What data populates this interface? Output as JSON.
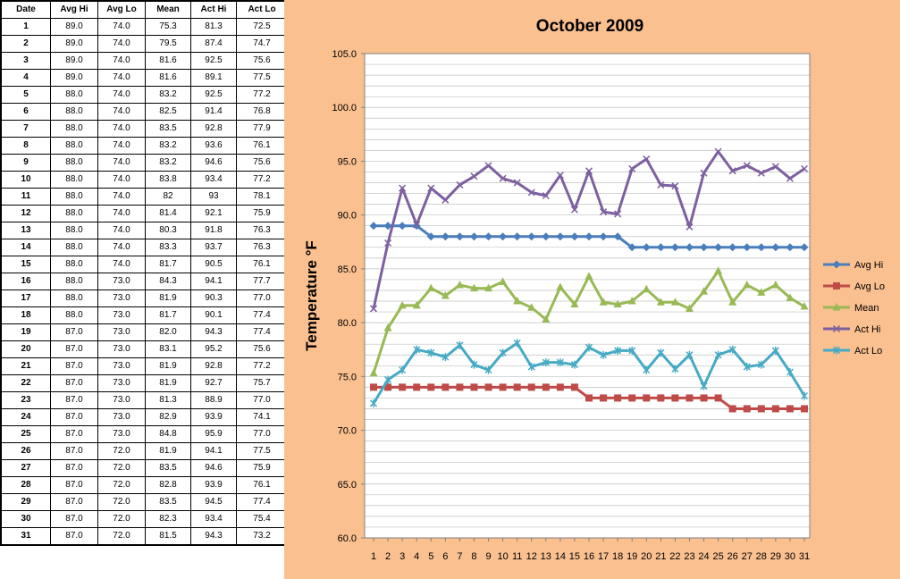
{
  "table": {
    "headers": [
      "Date",
      "Avg Hi",
      "Avg Lo",
      "Mean",
      "Act Hi",
      "Act Lo"
    ],
    "rows": [
      [
        "1",
        "89.0",
        "74.0",
        "75.3",
        "81.3",
        "72.5"
      ],
      [
        "2",
        "89.0",
        "74.0",
        "79.5",
        "87.4",
        "74.7"
      ],
      [
        "3",
        "89.0",
        "74.0",
        "81.6",
        "92.5",
        "75.6"
      ],
      [
        "4",
        "89.0",
        "74.0",
        "81.6",
        "89.1",
        "77.5"
      ],
      [
        "5",
        "88.0",
        "74.0",
        "83.2",
        "92.5",
        "77.2"
      ],
      [
        "6",
        "88.0",
        "74.0",
        "82.5",
        "91.4",
        "76.8"
      ],
      [
        "7",
        "88.0",
        "74.0",
        "83.5",
        "92.8",
        "77.9"
      ],
      [
        "8",
        "88.0",
        "74.0",
        "83.2",
        "93.6",
        "76.1"
      ],
      [
        "9",
        "88.0",
        "74.0",
        "83.2",
        "94.6",
        "75.6"
      ],
      [
        "10",
        "88.0",
        "74.0",
        "83.8",
        "93.4",
        "77.2"
      ],
      [
        "11",
        "88.0",
        "74.0",
        "82",
        "93",
        "78.1"
      ],
      [
        "12",
        "88.0",
        "74.0",
        "81.4",
        "92.1",
        "75.9"
      ],
      [
        "13",
        "88.0",
        "74.0",
        "80.3",
        "91.8",
        "76.3"
      ],
      [
        "14",
        "88.0",
        "74.0",
        "83.3",
        "93.7",
        "76.3"
      ],
      [
        "15",
        "88.0",
        "74.0",
        "81.7",
        "90.5",
        "76.1"
      ],
      [
        "16",
        "88.0",
        "73.0",
        "84.3",
        "94.1",
        "77.7"
      ],
      [
        "17",
        "88.0",
        "73.0",
        "81.9",
        "90.3",
        "77.0"
      ],
      [
        "18",
        "88.0",
        "73.0",
        "81.7",
        "90.1",
        "77.4"
      ],
      [
        "19",
        "87.0",
        "73.0",
        "82.0",
        "94.3",
        "77.4"
      ],
      [
        "20",
        "87.0",
        "73.0",
        "83.1",
        "95.2",
        "75.6"
      ],
      [
        "21",
        "87.0",
        "73.0",
        "81.9",
        "92.8",
        "77.2"
      ],
      [
        "22",
        "87.0",
        "73.0",
        "81.9",
        "92.7",
        "75.7"
      ],
      [
        "23",
        "87.0",
        "73.0",
        "81.3",
        "88.9",
        "77.0"
      ],
      [
        "24",
        "87.0",
        "73.0",
        "82.9",
        "93.9",
        "74.1"
      ],
      [
        "25",
        "87.0",
        "73.0",
        "84.8",
        "95.9",
        "77.0"
      ],
      [
        "26",
        "87.0",
        "72.0",
        "81.9",
        "94.1",
        "77.5"
      ],
      [
        "27",
        "87.0",
        "72.0",
        "83.5",
        "94.6",
        "75.9"
      ],
      [
        "28",
        "87.0",
        "72.0",
        "82.8",
        "93.9",
        "76.1"
      ],
      [
        "29",
        "87.0",
        "72.0",
        "83.5",
        "94.5",
        "77.4"
      ],
      [
        "30",
        "87.0",
        "72.0",
        "82.3",
        "93.4",
        "75.4"
      ],
      [
        "31",
        "87.0",
        "72.0",
        "81.5",
        "94.3",
        "73.2"
      ]
    ]
  },
  "chart_data": {
    "type": "line",
    "title": "October 2009",
    "xlabel": "",
    "ylabel": "Temperature °F",
    "ylim": [
      60,
      105
    ],
    "yticks": [
      "60.0",
      "65.0",
      "70.0",
      "75.0",
      "80.0",
      "85.0",
      "90.0",
      "95.0",
      "100.0",
      "105.0"
    ],
    "x": [
      1,
      2,
      3,
      4,
      5,
      6,
      7,
      8,
      9,
      10,
      11,
      12,
      13,
      14,
      15,
      16,
      17,
      18,
      19,
      20,
      21,
      22,
      23,
      24,
      25,
      26,
      27,
      28,
      29,
      30,
      31
    ],
    "grid": true,
    "legend_position": "right",
    "background": "#fac090",
    "plot_background": "#ffffff",
    "series": [
      {
        "name": "Avg Hi",
        "color": "#4a7ebb",
        "marker": "diamond",
        "values": [
          89,
          89,
          89,
          89,
          88,
          88,
          88,
          88,
          88,
          88,
          88,
          88,
          88,
          88,
          88,
          88,
          88,
          88,
          87,
          87,
          87,
          87,
          87,
          87,
          87,
          87,
          87,
          87,
          87,
          87,
          87
        ]
      },
      {
        "name": "Avg Lo",
        "color": "#be4b48",
        "marker": "square",
        "values": [
          74,
          74,
          74,
          74,
          74,
          74,
          74,
          74,
          74,
          74,
          74,
          74,
          74,
          74,
          74,
          73,
          73,
          73,
          73,
          73,
          73,
          73,
          73,
          73,
          73,
          72,
          72,
          72,
          72,
          72,
          72
        ]
      },
      {
        "name": "Mean",
        "color": "#98b954",
        "marker": "triangle",
        "values": [
          75.3,
          79.5,
          81.6,
          81.6,
          83.2,
          82.5,
          83.5,
          83.2,
          83.2,
          83.8,
          82,
          81.4,
          80.3,
          83.3,
          81.7,
          84.3,
          81.9,
          81.7,
          82.0,
          83.1,
          81.9,
          81.9,
          81.3,
          82.9,
          84.8,
          81.9,
          83.5,
          82.8,
          83.5,
          82.3,
          81.5
        ]
      },
      {
        "name": "Act Hi",
        "color": "#7d60a0",
        "marker": "x",
        "values": [
          81.3,
          87.4,
          92.5,
          89.1,
          92.5,
          91.4,
          92.8,
          93.6,
          94.6,
          93.4,
          93,
          92.1,
          91.8,
          93.7,
          90.5,
          94.1,
          90.3,
          90.1,
          94.3,
          95.2,
          92.8,
          92.7,
          88.9,
          93.9,
          95.9,
          94.1,
          94.6,
          93.9,
          94.5,
          93.4,
          94.3
        ]
      },
      {
        "name": "Act Lo",
        "color": "#46aac5",
        "marker": "star",
        "values": [
          72.5,
          74.7,
          75.6,
          77.5,
          77.2,
          76.8,
          77.9,
          76.1,
          75.6,
          77.2,
          78.1,
          75.9,
          76.3,
          76.3,
          76.1,
          77.7,
          77.0,
          77.4,
          77.4,
          75.6,
          77.2,
          75.7,
          77.0,
          74.1,
          77.0,
          77.5,
          75.9,
          76.1,
          77.4,
          75.4,
          73.2
        ]
      }
    ]
  }
}
